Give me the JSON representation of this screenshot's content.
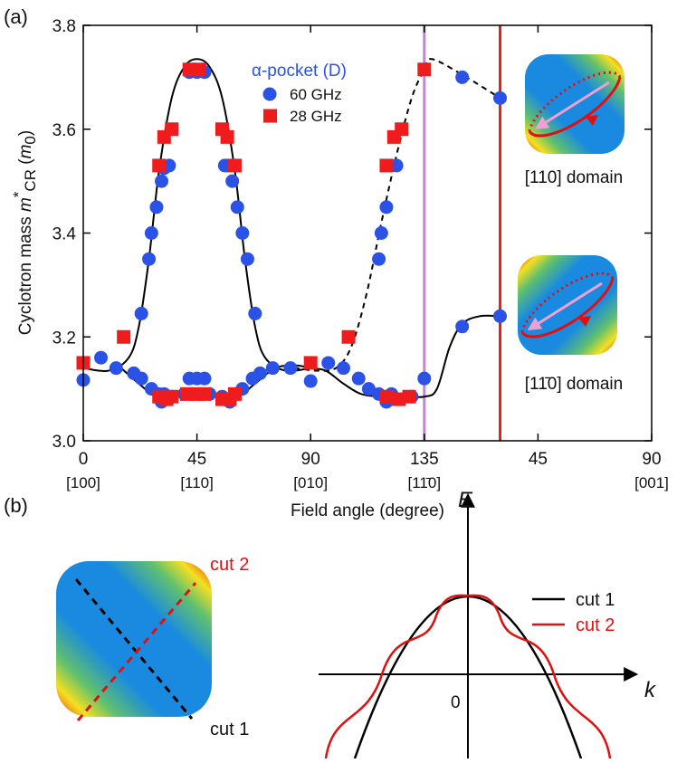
{
  "chart_data": {
    "type": "scatter",
    "panel_a": "(a)",
    "panel_b": "(b)",
    "x_label": "Field angle (degree)",
    "y_label": [
      "Cyclotron mass ",
      "m",
      "*",
      "CR",
      " (",
      "m",
      "0",
      ")"
    ],
    "xlim": [
      0,
      225
    ],
    "ylim": [
      3.0,
      3.8
    ],
    "xticks": [
      0,
      45,
      90,
      135,
      {
        "value": 180,
        "label": "45"
      },
      {
        "value": 225,
        "label": "90"
      }
    ],
    "x_direction_labels": [
      {
        "value": 0,
        "label": "[100]"
      },
      {
        "value": 45,
        "label": "[110]"
      },
      {
        "value": 90,
        "label": "[010]"
      },
      {
        "value": 135,
        "label": "[11̄0]"
      },
      {
        "value": 225,
        "label": "[001]"
      }
    ],
    "yticks": [
      {
        "value": 3,
        "label": "3.0"
      },
      3.2,
      3.4,
      3.6,
      3.8
    ],
    "legend_title": "α-pocket (D)",
    "series": [
      {
        "name": "60 GHz",
        "color": "#2b52e6",
        "marker": "circle",
        "x": [
          0,
          7,
          13,
          20,
          23,
          27,
          30,
          31,
          32,
          35,
          40,
          42,
          45,
          48,
          50,
          55,
          58,
          60,
          63,
          67,
          70,
          75,
          82,
          90,
          97,
          103,
          109,
          113,
          117,
          120,
          122,
          125,
          130,
          135,
          150,
          165,
          23,
          26,
          27,
          29,
          31,
          32,
          34,
          42,
          45,
          48,
          56,
          57,
          59,
          61,
          63,
          65,
          68,
          117,
          118,
          120,
          124,
          150,
          165
        ],
        "values": [
          3.117,
          3.16,
          3.14,
          3.13,
          3.12,
          3.1,
          3.09,
          3.075,
          3.09,
          3.085,
          3.09,
          3.12,
          3.12,
          3.12,
          3.09,
          3.085,
          3.075,
          3.09,
          3.1,
          3.12,
          3.13,
          3.14,
          3.14,
          3.115,
          3.15,
          3.14,
          3.12,
          3.1,
          3.09,
          3.075,
          3.09,
          3.08,
          3.085,
          3.12,
          3.22,
          3.24,
          3.245,
          3.35,
          3.4,
          3.45,
          3.5,
          3.525,
          3.53,
          3.71,
          3.71,
          3.71,
          3.53,
          3.53,
          3.5,
          3.45,
          3.4,
          3.35,
          3.245,
          3.35,
          3.4,
          3.45,
          3.53,
          3.7,
          3.66
        ]
      },
      {
        "name": "28 GHz",
        "color": "#ee1c1c",
        "marker": "square",
        "x": [
          0,
          16,
          30,
          32,
          35,
          30,
          33,
          35,
          42,
          46,
          41,
          45,
          48,
          55,
          57,
          60,
          55,
          58,
          60,
          90,
          105,
          120,
          123,
          126,
          120,
          125,
          129,
          135
        ],
        "values": [
          3.15,
          3.2,
          3.53,
          3.585,
          3.6,
          3.085,
          3.08,
          3.085,
          3.715,
          3.715,
          3.09,
          3.09,
          3.09,
          3.6,
          3.585,
          3.53,
          3.08,
          3.08,
          3.09,
          3.15,
          3.2,
          3.53,
          3.585,
          3.6,
          3.085,
          3.08,
          3.085,
          3.715
        ]
      }
    ],
    "curves": [
      {
        "dash": false,
        "x": [
          0,
          10,
          18,
          22,
          26,
          30,
          35,
          40,
          45,
          50,
          55,
          60,
          64,
          68,
          72,
          80,
          90
        ],
        "values": [
          3.14,
          3.135,
          3.16,
          3.22,
          3.35,
          3.52,
          3.66,
          3.72,
          3.735,
          3.72,
          3.66,
          3.52,
          3.35,
          3.22,
          3.16,
          3.135,
          3.14
        ]
      },
      {
        "dash": false,
        "x": [
          15,
          22,
          28,
          35,
          45,
          55,
          62,
          68,
          76,
          84,
          90,
          96,
          103,
          110,
          118,
          126,
          135,
          140,
          145,
          150,
          157,
          165
        ],
        "values": [
          3.14,
          3.11,
          3.088,
          3.085,
          3.085,
          3.085,
          3.088,
          3.11,
          3.14,
          3.145,
          3.14,
          3.135,
          3.11,
          3.09,
          3.085,
          3.085,
          3.085,
          3.1,
          3.18,
          3.225,
          3.24,
          3.24
        ]
      },
      {
        "dash": true,
        "x": [
          68,
          76,
          84,
          92,
          100,
          106,
          112,
          118,
          124,
          130,
          135,
          138,
          150,
          165
        ],
        "values": [
          3.13,
          3.14,
          3.14,
          3.135,
          3.14,
          3.18,
          3.28,
          3.42,
          3.55,
          3.66,
          3.715,
          3.735,
          3.705,
          3.66
        ]
      }
    ],
    "markers": [
      {
        "x": 135,
        "color": "#c77fe0"
      },
      {
        "x": 165,
        "color": "#e02020"
      }
    ],
    "domain_labels": [
      "[110] domain",
      "[11̄0] domain"
    ],
    "cut_labels": [
      "cut 2",
      "cut 1"
    ],
    "band": {
      "e_axis": "E",
      "k_axis": "k",
      "origin": "0",
      "legend": [
        {
          "name": "cut 1",
          "color": "#000000"
        },
        {
          "name": "cut 2",
          "color": "#e01010"
        }
      ]
    }
  }
}
